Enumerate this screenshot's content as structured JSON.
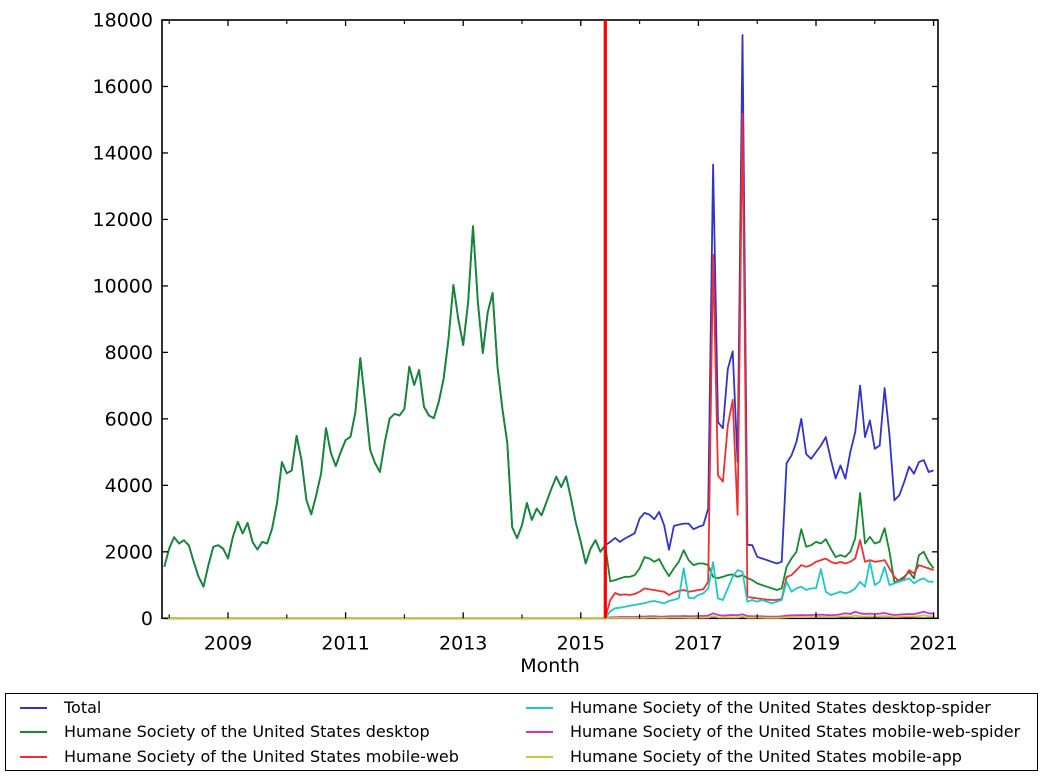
{
  "chart_data": {
    "type": "line",
    "title": "",
    "xlabel": "Month",
    "ylabel": "",
    "ylim": [
      0,
      18000
    ],
    "y_ticks": [
      0,
      2000,
      4000,
      6000,
      8000,
      10000,
      12000,
      14000,
      16000,
      18000
    ],
    "x_major_tick_years": [
      2009,
      2011,
      2013,
      2015,
      2017,
      2019,
      2021
    ],
    "x_minor_tick_years": [
      2008,
      2010,
      2012,
      2014,
      2016,
      2018,
      2020
    ],
    "x_start": "2007-12",
    "x_end": "2021-01",
    "grid": false,
    "legend_position": "bottom",
    "legend_columns": 2,
    "marker_line": {
      "month": "2015-06",
      "color": "#ff0000"
    },
    "months": [
      "2007-12",
      "2008-01",
      "2008-02",
      "2008-03",
      "2008-04",
      "2008-05",
      "2008-06",
      "2008-07",
      "2008-08",
      "2008-09",
      "2008-10",
      "2008-11",
      "2008-12",
      "2009-01",
      "2009-02",
      "2009-03",
      "2009-04",
      "2009-05",
      "2009-06",
      "2009-07",
      "2009-08",
      "2009-09",
      "2009-10",
      "2009-11",
      "2009-12",
      "2010-01",
      "2010-02",
      "2010-03",
      "2010-04",
      "2010-05",
      "2010-06",
      "2010-07",
      "2010-08",
      "2010-09",
      "2010-10",
      "2010-11",
      "2010-12",
      "2011-01",
      "2011-02",
      "2011-03",
      "2011-04",
      "2011-05",
      "2011-06",
      "2011-07",
      "2011-08",
      "2011-09",
      "2011-10",
      "2011-11",
      "2011-12",
      "2012-01",
      "2012-02",
      "2012-03",
      "2012-04",
      "2012-05",
      "2012-06",
      "2012-07",
      "2012-08",
      "2012-09",
      "2012-10",
      "2012-11",
      "2012-12",
      "2013-01",
      "2013-02",
      "2013-03",
      "2013-04",
      "2013-05",
      "2013-06",
      "2013-07",
      "2013-08",
      "2013-09",
      "2013-10",
      "2013-11",
      "2013-12",
      "2014-01",
      "2014-02",
      "2014-03",
      "2014-04",
      "2014-05",
      "2014-06",
      "2014-07",
      "2014-08",
      "2014-09",
      "2014-10",
      "2014-11",
      "2014-12",
      "2015-01",
      "2015-02",
      "2015-03",
      "2015-04",
      "2015-05",
      "2015-06",
      "2015-07",
      "2015-08",
      "2015-09",
      "2015-10",
      "2015-11",
      "2015-12",
      "2016-01",
      "2016-02",
      "2016-03",
      "2016-04",
      "2016-05",
      "2016-06",
      "2016-07",
      "2016-08",
      "2016-09",
      "2016-10",
      "2016-11",
      "2016-12",
      "2017-01",
      "2017-02",
      "2017-03",
      "2017-04",
      "2017-05",
      "2017-06",
      "2017-07",
      "2017-08",
      "2017-09",
      "2017-10",
      "2017-11",
      "2017-12",
      "2018-01",
      "2018-02",
      "2018-03",
      "2018-04",
      "2018-05",
      "2018-06",
      "2018-07",
      "2018-08",
      "2018-09",
      "2018-10",
      "2018-11",
      "2018-12",
      "2019-01",
      "2019-02",
      "2019-03",
      "2019-04",
      "2019-05",
      "2019-06",
      "2019-07",
      "2019-08",
      "2019-09",
      "2019-10",
      "2019-11",
      "2019-12",
      "2020-01",
      "2020-02",
      "2020-03",
      "2020-04",
      "2020-05",
      "2020-06",
      "2020-07",
      "2020-08",
      "2020-09",
      "2020-10",
      "2020-11",
      "2020-12",
      "2021-01"
    ],
    "series": [
      {
        "name": "Total",
        "color": "#3333cc",
        "values": [
          1550,
          2100,
          2440,
          2250,
          2350,
          2200,
          1700,
          1250,
          950,
          1600,
          2150,
          2200,
          2100,
          1800,
          2450,
          2900,
          2550,
          2870,
          2300,
          2070,
          2300,
          2250,
          2700,
          3460,
          4700,
          4360,
          4450,
          5490,
          4760,
          3560,
          3130,
          3700,
          4360,
          5720,
          4970,
          4580,
          5000,
          5360,
          5460,
          6200,
          7830,
          6500,
          5070,
          4670,
          4400,
          5300,
          6010,
          6150,
          6100,
          6300,
          7570,
          7020,
          7470,
          6360,
          6100,
          6020,
          6500,
          7200,
          8400,
          10030,
          9000,
          8220,
          9500,
          11800,
          9500,
          7980,
          9200,
          9790,
          7560,
          6300,
          5270,
          2740,
          2410,
          2800,
          3470,
          2960,
          3300,
          3100,
          3500,
          3900,
          4260,
          3950,
          4270,
          3600,
          2860,
          2300,
          1650,
          2100,
          2350,
          2000,
          2200,
          2300,
          2420,
          2300,
          2400,
          2480,
          2560,
          3000,
          3170,
          3120,
          2980,
          3200,
          2800,
          2060,
          2780,
          2820,
          2850,
          2850,
          2680,
          2750,
          2800,
          3300,
          13650,
          5900,
          5720,
          7500,
          8030,
          4700,
          17550,
          2210,
          2200,
          1850,
          1800,
          1750,
          1700,
          1650,
          1700,
          4670,
          4900,
          5300,
          6000,
          4940,
          4800,
          5000,
          5200,
          5450,
          4800,
          4210,
          4600,
          4200,
          5000,
          5600,
          7000,
          5450,
          5950,
          5100,
          5200,
          6930,
          5500,
          3550,
          3700,
          4100,
          4560,
          4350,
          4700,
          4760,
          4400,
          4450
        ]
      },
      {
        "name": "Humane Society of the United States desktop",
        "color": "#128a2e",
        "values": [
          1550,
          2100,
          2440,
          2250,
          2350,
          2200,
          1700,
          1250,
          950,
          1600,
          2150,
          2200,
          2100,
          1800,
          2450,
          2900,
          2550,
          2870,
          2300,
          2070,
          2300,
          2250,
          2700,
          3460,
          4700,
          4360,
          4450,
          5490,
          4760,
          3560,
          3130,
          3700,
          4360,
          5720,
          4970,
          4580,
          5000,
          5360,
          5460,
          6200,
          7830,
          6500,
          5070,
          4670,
          4400,
          5300,
          6010,
          6150,
          6100,
          6300,
          7570,
          7020,
          7470,
          6360,
          6100,
          6020,
          6500,
          7200,
          8400,
          10030,
          9000,
          8220,
          9500,
          11800,
          9500,
          7980,
          9200,
          9790,
          7560,
          6300,
          5270,
          2740,
          2410,
          2800,
          3470,
          2960,
          3300,
          3100,
          3500,
          3900,
          4260,
          3950,
          4270,
          3600,
          2860,
          2300,
          1650,
          2100,
          2350,
          2000,
          2200,
          1110,
          1150,
          1200,
          1250,
          1250,
          1300,
          1500,
          1840,
          1800,
          1700,
          1780,
          1500,
          1270,
          1500,
          1700,
          2050,
          1750,
          1600,
          1650,
          1650,
          1600,
          1250,
          1210,
          1250,
          1300,
          1320,
          1250,
          1300,
          1210,
          1150,
          1050,
          1000,
          950,
          900,
          850,
          900,
          1550,
          1800,
          2000,
          2680,
          2150,
          2200,
          2300,
          2250,
          2380,
          2100,
          1840,
          1900,
          1850,
          2000,
          2400,
          3770,
          2250,
          2450,
          2250,
          2300,
          2710,
          2000,
          1080,
          1150,
          1250,
          1400,
          1200,
          1900,
          2000,
          1700,
          1500
        ]
      },
      {
        "name": "Humane Society of the United States mobile-web",
        "color": "#ef3030",
        "values": [
          0,
          0,
          0,
          0,
          0,
          0,
          0,
          0,
          0,
          0,
          0,
          0,
          0,
          0,
          0,
          0,
          0,
          0,
          0,
          0,
          0,
          0,
          0,
          0,
          0,
          0,
          0,
          0,
          0,
          0,
          0,
          0,
          0,
          0,
          0,
          0,
          0,
          0,
          0,
          0,
          0,
          0,
          0,
          0,
          0,
          0,
          0,
          0,
          0,
          0,
          0,
          0,
          0,
          0,
          0,
          0,
          0,
          0,
          0,
          0,
          0,
          0,
          0,
          0,
          0,
          0,
          0,
          0,
          0,
          0,
          0,
          0,
          0,
          0,
          0,
          0,
          0,
          0,
          0,
          0,
          0,
          0,
          0,
          0,
          0,
          0,
          0,
          0,
          0,
          0,
          0,
          550,
          760,
          700,
          720,
          700,
          730,
          800,
          900,
          870,
          850,
          820,
          800,
          700,
          780,
          820,
          850,
          800,
          820,
          850,
          870,
          1100,
          10940,
          4300,
          4110,
          5800,
          6570,
          3110,
          15180,
          650,
          620,
          600,
          580,
          560,
          550,
          550,
          580,
          1240,
          1300,
          1450,
          1600,
          1550,
          1600,
          1700,
          1750,
          1800,
          1700,
          1650,
          1700,
          1650,
          1700,
          1800,
          2350,
          1700,
          1750,
          1700,
          1720,
          1750,
          1500,
          1250,
          1100,
          1200,
          1450,
          1350,
          1600,
          1550,
          1500,
          1450
        ]
      },
      {
        "name": "Humane Society of the United States desktop-spider",
        "color": "#1fc8c8",
        "values": [
          0,
          0,
          0,
          0,
          0,
          0,
          0,
          0,
          0,
          0,
          0,
          0,
          0,
          0,
          0,
          0,
          0,
          0,
          0,
          0,
          0,
          0,
          0,
          0,
          0,
          0,
          0,
          0,
          0,
          0,
          0,
          0,
          0,
          0,
          0,
          0,
          0,
          0,
          0,
          0,
          0,
          0,
          0,
          0,
          0,
          0,
          0,
          0,
          0,
          0,
          0,
          0,
          0,
          0,
          0,
          0,
          0,
          0,
          0,
          0,
          0,
          0,
          0,
          0,
          0,
          0,
          0,
          0,
          0,
          0,
          0,
          0,
          0,
          0,
          0,
          0,
          0,
          0,
          0,
          0,
          0,
          0,
          0,
          0,
          0,
          0,
          0,
          0,
          0,
          0,
          0,
          210,
          300,
          320,
          350,
          380,
          400,
          430,
          450,
          500,
          520,
          480,
          450,
          520,
          560,
          600,
          1500,
          620,
          600,
          700,
          750,
          900,
          1690,
          600,
          550,
          900,
          1250,
          1450,
          1400,
          500,
          550,
          500,
          550,
          500,
          450,
          500,
          550,
          1100,
          800,
          900,
          950,
          850,
          900,
          900,
          1480,
          800,
          700,
          750,
          800,
          750,
          800,
          900,
          1100,
          950,
          1700,
          1000,
          1100,
          1550,
          1000,
          1050,
          1100,
          1150,
          1200,
          1050,
          1150,
          1200,
          1100,
          1100
        ]
      },
      {
        "name": "Humane Society of the United States mobile-web-spider",
        "color": "#cc33cc",
        "values": [
          0,
          0,
          0,
          0,
          0,
          0,
          0,
          0,
          0,
          0,
          0,
          0,
          0,
          0,
          0,
          0,
          0,
          0,
          0,
          0,
          0,
          0,
          0,
          0,
          0,
          0,
          0,
          0,
          0,
          0,
          0,
          0,
          0,
          0,
          0,
          0,
          0,
          0,
          0,
          0,
          0,
          0,
          0,
          0,
          0,
          0,
          0,
          0,
          0,
          0,
          0,
          0,
          0,
          0,
          0,
          0,
          0,
          0,
          0,
          0,
          0,
          0,
          0,
          0,
          0,
          0,
          0,
          0,
          0,
          0,
          0,
          0,
          0,
          0,
          0,
          0,
          0,
          0,
          0,
          0,
          0,
          0,
          0,
          0,
          0,
          0,
          0,
          0,
          0,
          0,
          0,
          30,
          30,
          40,
          40,
          40,
          40,
          50,
          50,
          60,
          60,
          50,
          50,
          60,
          60,
          60,
          70,
          60,
          60,
          70,
          70,
          80,
          150,
          100,
          80,
          90,
          100,
          90,
          120,
          70,
          60,
          60,
          60,
          50,
          50,
          50,
          60,
          80,
          90,
          90,
          100,
          90,
          100,
          100,
          110,
          100,
          90,
          100,
          120,
          150,
          130,
          200,
          150,
          130,
          140,
          130,
          140,
          160,
          120,
          100,
          110,
          120,
          130,
          120,
          160,
          200,
          150,
          140
        ]
      },
      {
        "name": "Humane Society of the United States mobile-app",
        "color": "#c9c932",
        "values": [
          0,
          0,
          0,
          0,
          0,
          0,
          0,
          0,
          0,
          0,
          0,
          0,
          0,
          0,
          0,
          0,
          0,
          0,
          0,
          0,
          0,
          0,
          0,
          0,
          0,
          0,
          0,
          0,
          0,
          0,
          0,
          0,
          0,
          0,
          0,
          0,
          0,
          0,
          0,
          0,
          0,
          0,
          0,
          0,
          0,
          0,
          0,
          0,
          0,
          0,
          0,
          0,
          0,
          0,
          0,
          0,
          0,
          0,
          0,
          0,
          0,
          0,
          0,
          0,
          0,
          0,
          0,
          0,
          0,
          0,
          0,
          0,
          0,
          0,
          0,
          0,
          0,
          0,
          0,
          0,
          0,
          0,
          0,
          0,
          0,
          0,
          0,
          0,
          0,
          0,
          0,
          10,
          10,
          10,
          10,
          10,
          10,
          15,
          15,
          20,
          20,
          15,
          15,
          20,
          20,
          20,
          20,
          15,
          15,
          20,
          20,
          25,
          60,
          30,
          25,
          25,
          30,
          25,
          50,
          20,
          20,
          20,
          20,
          15,
          15,
          15,
          20,
          30,
          35,
          35,
          40,
          35,
          40,
          40,
          45,
          40,
          40,
          40,
          50,
          60,
          50,
          80,
          60,
          50,
          60,
          50,
          60,
          70,
          50,
          40,
          45,
          50,
          55,
          50,
          70,
          90,
          60,
          60
        ]
      }
    ]
  }
}
